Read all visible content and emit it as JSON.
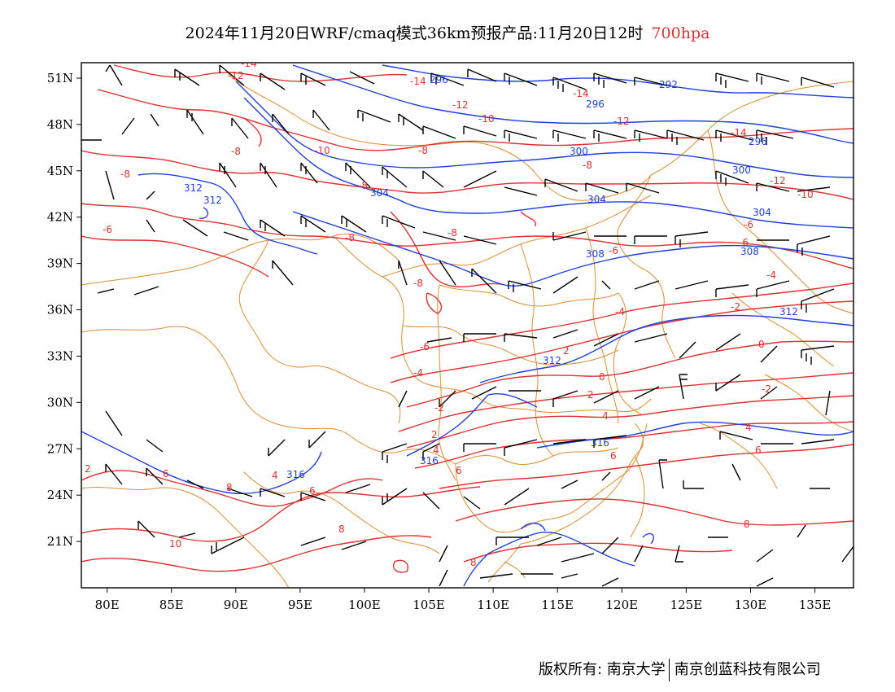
{
  "title": {
    "main": "2024年11月20日WRF/cmaq模式36km预报产品:11月20日12时",
    "level": "700hpa"
  },
  "colors": {
    "height_contour": "#1f3fe0",
    "temperature_contour": "#e32f2f",
    "boundary": "#e08b2e",
    "wind_barb": "#000000",
    "level_text": "#e32f2f"
  },
  "axes": {
    "x_ticks": [
      "80E",
      "85E",
      "90E",
      "95E",
      "100E",
      "105E",
      "110E",
      "115E",
      "120E",
      "125E",
      "130E",
      "135E"
    ],
    "x_values": [
      80,
      85,
      90,
      95,
      100,
      105,
      110,
      115,
      120,
      125,
      130,
      135
    ],
    "y_ticks": [
      "51N",
      "48N",
      "45N",
      "42N",
      "39N",
      "36N",
      "33N",
      "30N",
      "27N",
      "24N",
      "21N"
    ],
    "y_values": [
      51,
      48,
      45,
      42,
      39,
      36,
      33,
      30,
      27,
      24,
      21
    ],
    "lon_range": [
      78,
      138
    ],
    "lat_range": [
      18,
      52
    ]
  },
  "height_labels": [
    "296",
    "292",
    "296",
    "296",
    "300",
    "300",
    "304",
    "304",
    "304",
    "308",
    "308",
    "312",
    "312",
    "312",
    "312",
    "316",
    "316",
    "316"
  ],
  "temperature_labels": [
    "-14",
    "-12",
    "-14",
    "-14",
    "-12",
    "-10",
    "-12",
    "-14",
    "-12",
    "-10",
    "-8",
    "-8",
    "-8",
    "-8",
    "-10",
    "-8",
    "-6",
    "-8",
    "-8",
    "-6",
    "-6",
    "-6",
    "-8",
    "-4",
    "-4",
    "-2",
    "-6",
    "-4",
    "2",
    "0",
    "-2",
    "0",
    "2",
    "-2",
    "2",
    "4",
    "2",
    "4",
    "4",
    "6",
    "6",
    "6",
    "6",
    "4",
    "6",
    "8",
    "8",
    "10",
    "8",
    "8"
  ],
  "footer": {
    "left": "版权所有: 南京大学",
    "right": "南京创蓝科技有限公司"
  }
}
